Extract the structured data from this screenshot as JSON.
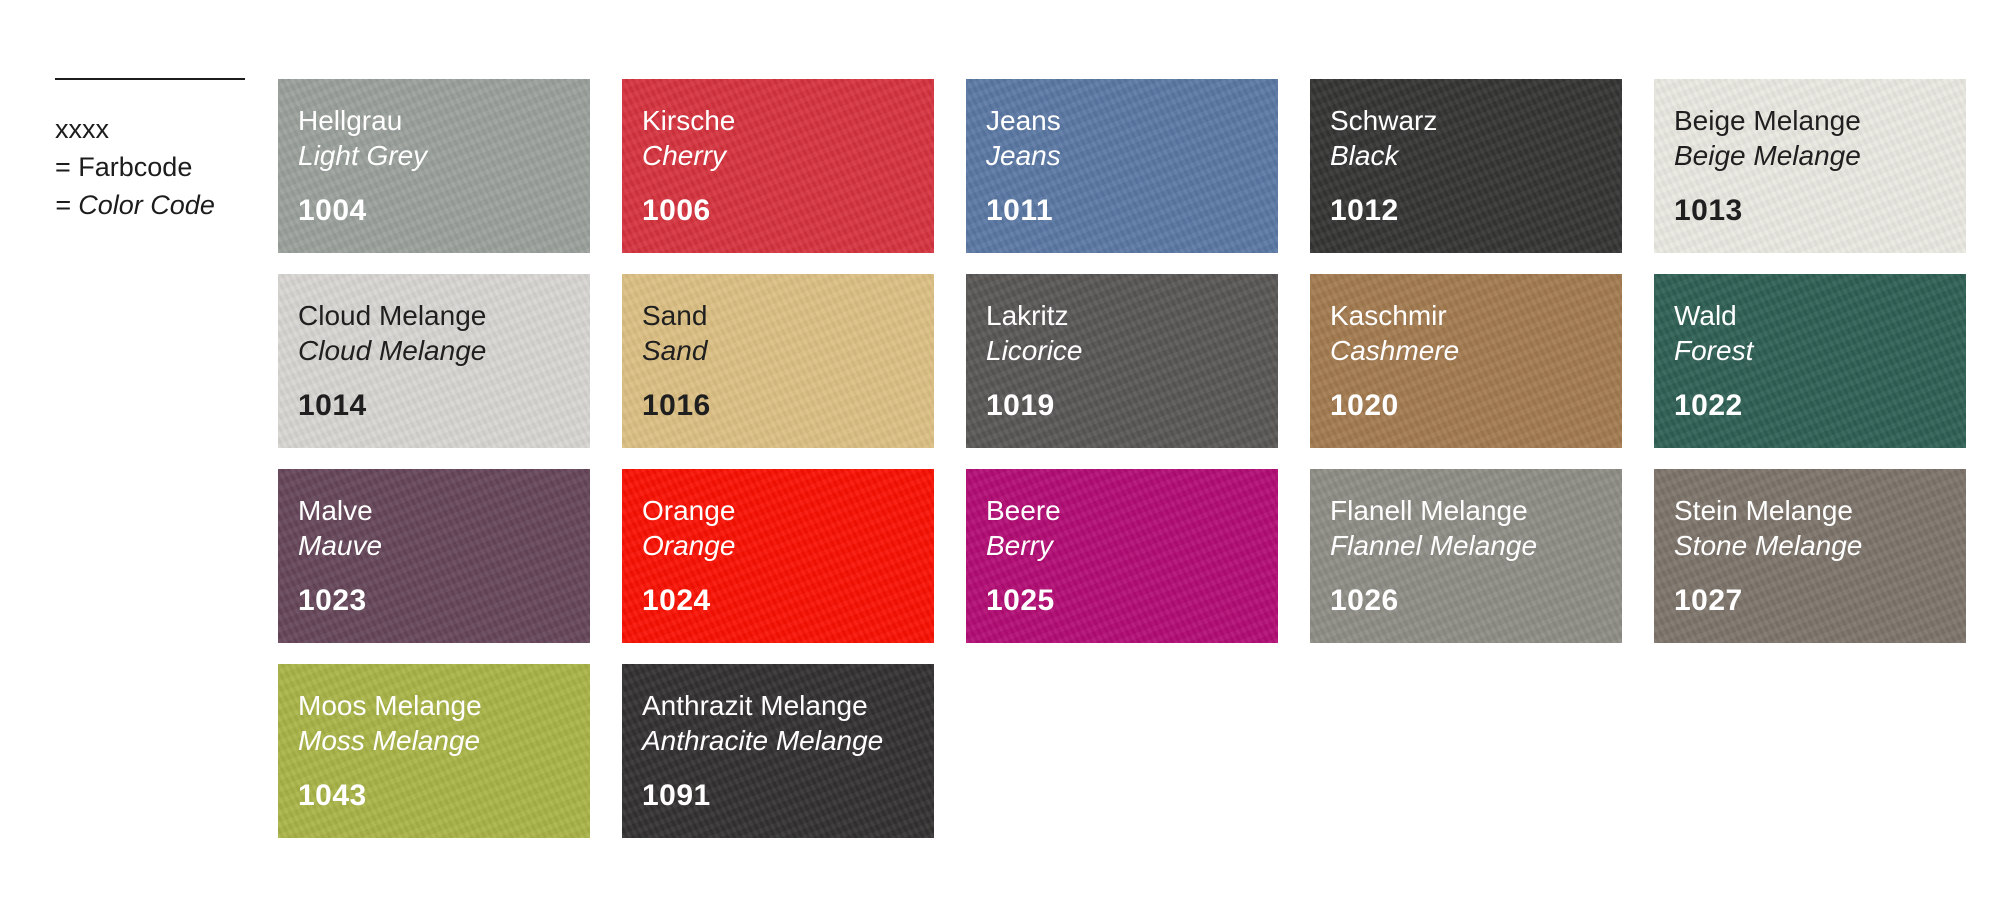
{
  "legend": {
    "placeholder": "xxxx",
    "farbcode_label": "= Farbcode",
    "colorcode_label": "= Color Code"
  },
  "swatches": [
    {
      "name_de": "Hellgrau",
      "name_en": "Light Grey",
      "code": "1004",
      "color": "#9aa09b",
      "text_color": "light"
    },
    {
      "name_de": "Kirsche",
      "name_en": "Cherry",
      "code": "1006",
      "color": "#d6333e",
      "text_color": "light"
    },
    {
      "name_de": "Jeans",
      "name_en": "Jeans",
      "code": "1011",
      "color": "#5a78a4",
      "text_color": "light"
    },
    {
      "name_de": "Schwarz",
      "name_en": "Black",
      "code": "1012",
      "color": "#343433",
      "text_color": "light"
    },
    {
      "name_de": "Beige Melange",
      "name_en": "Beige Melange",
      "code": "1013",
      "color": "#e9e8e1",
      "text_color": "dark"
    },
    {
      "name_de": "Cloud Melange",
      "name_en": "Cloud Melange",
      "code": "1014",
      "color": "#d8d6d2",
      "text_color": "dark"
    },
    {
      "name_de": "Sand",
      "name_en": "Sand",
      "code": "1016",
      "color": "#dcbf83",
      "text_color": "dark"
    },
    {
      "name_de": "Lakritz",
      "name_en": "Licorice",
      "code": "1019",
      "color": "#595755",
      "text_color": "light"
    },
    {
      "name_de": "Kaschmir",
      "name_en": "Cashmere",
      "code": "1020",
      "color": "#a37a4f",
      "text_color": "light"
    },
    {
      "name_de": "Wald",
      "name_en": "Forest",
      "code": "1022",
      "color": "#2f5f54",
      "text_color": "light"
    },
    {
      "name_de": "Malve",
      "name_en": "Mauve",
      "code": "1023",
      "color": "#654659",
      "text_color": "light"
    },
    {
      "name_de": "Orange",
      "name_en": "Orange",
      "code": "1024",
      "color": "#fa1002",
      "text_color": "light"
    },
    {
      "name_de": "Beere",
      "name_en": "Berry",
      "code": "1025",
      "color": "#b20c74",
      "text_color": "light"
    },
    {
      "name_de": "Flanell Melange",
      "name_en": "Flannel Melange",
      "code": "1026",
      "color": "#8d8c85",
      "text_color": "light"
    },
    {
      "name_de": "Stein Melange",
      "name_en": "Stone Melange",
      "code": "1027",
      "color": "#7d746a",
      "text_color": "light"
    },
    {
      "name_de": "Moos Melange",
      "name_en": "Moss Melange",
      "code": "1043",
      "color": "#a9b447",
      "text_color": "light"
    },
    {
      "name_de": "Anthrazit Melange",
      "name_en": "Anthracite Melange",
      "code": "1091",
      "color": "#323130",
      "text_color": "light"
    }
  ]
}
